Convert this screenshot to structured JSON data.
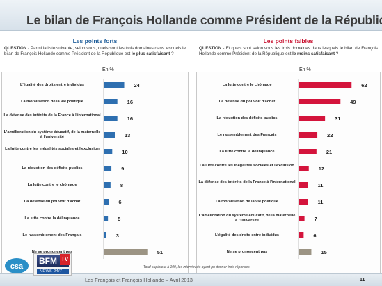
{
  "title": "Le bilan de François Hollande comme Président de la République",
  "left": {
    "heading": "Les points forts",
    "question_label": "QUESTION",
    "question_text": "- Parmi la liste suivante, selon vous, quels sont les trois domaines dans lesquels le bilan de François Hollande comme Président de la République est",
    "question_emph": "le plus satisfaisant",
    "question_end": " ?",
    "unit": "En %"
  },
  "right": {
    "heading": "Les points faibles",
    "question_label": "QUESTION",
    "question_text": "- Et quels sont selon vous les trois domaines dans lesquels le bilan de François Hollande comme Président de la République est",
    "question_emph": "le moins satisfaisant",
    "question_end": " ?",
    "unit": "En %"
  },
  "chart_data": [
    {
      "type": "bar",
      "orientation": "horizontal",
      "title": "Les points forts",
      "categories": [
        "L'égalité des droits entre individus",
        "La moralisation de la vie politique",
        "La défense des intérêts de la France à l'international",
        "L'amélioration du système éducatif, de la maternelle à l'université",
        "La lutte contre les inégalités sociales et l'exclusion",
        "La réduction des déficits publics",
        "La lutte contre le chômage",
        "La défense du pouvoir d'achat",
        "La lutte contre la délinquance",
        "Le rassemblement des Français",
        "Ne se prononcent pas"
      ],
      "values": [
        24,
        16,
        16,
        13,
        10,
        9,
        8,
        6,
        5,
        3,
        51
      ],
      "xlim": [
        0,
        80
      ],
      "colors": [
        "#2e6fb0",
        "#2e6fb0",
        "#2e6fb0",
        "#2e6fb0",
        "#2e6fb0",
        "#2e6fb0",
        "#2e6fb0",
        "#2e6fb0",
        "#2e6fb0",
        "#2e6fb0",
        "#9c9484"
      ]
    },
    {
      "type": "bar",
      "orientation": "horizontal",
      "title": "Les points faibles",
      "categories": [
        "La lutte contre le chômage",
        "La défense du pouvoir d'achat",
        "La réduction des déficits publics",
        "Le rassemblement des Français",
        "La lutte contre la délinquance",
        "La lutte contre les inégalités sociales et l'exclusion",
        "La défense des intérêts de la France à l'international",
        "La moralisation de la vie politique",
        "L'amélioration du système éducatif, de la maternelle à l'université",
        "L'égalité des droits entre individus",
        "Ne se prononcent pas"
      ],
      "values": [
        62,
        49,
        31,
        22,
        21,
        12,
        11,
        11,
        7,
        6,
        15
      ],
      "xlim": [
        0,
        80
      ],
      "colors": [
        "#d4143c",
        "#d4143c",
        "#d4143c",
        "#d4143c",
        "#d4143c",
        "#d4143c",
        "#d4143c",
        "#d4143c",
        "#d4143c",
        "#d4143c",
        "#9c9484"
      ]
    }
  ],
  "footnote": "Total supérieur à 100, les interviewés ayant pu donner trois réponses",
  "footer": "Les Français et François Hollande – Avril 2013",
  "page_number": "11",
  "logos": {
    "csa": "csa",
    "bfm": "BFM",
    "tv": "TV",
    "sub": "NEWS 24/7"
  }
}
